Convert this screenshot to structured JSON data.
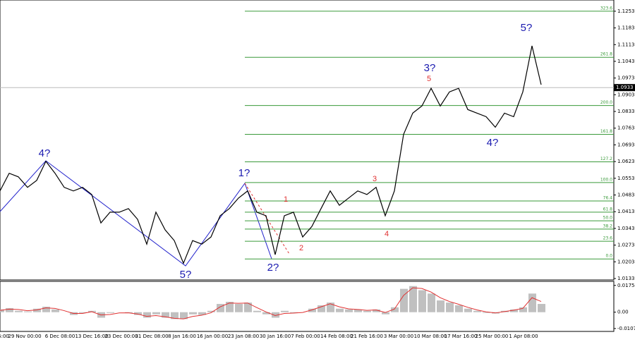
{
  "chart_data": [
    {
      "type": "price-line",
      "color": "#000000",
      "values": [
        1.05,
        1.0574,
        1.0559,
        1.0515,
        1.0544,
        1.0624,
        1.0574,
        1.0515,
        1.05,
        1.0515,
        1.0485,
        1.0366,
        1.0411,
        1.0411,
        1.0426,
        1.0381,
        1.0277,
        1.0411,
        1.0337,
        1.0292,
        1.0197,
        1.0292,
        1.0277,
        1.0307,
        1.0396,
        1.0426,
        1.047,
        1.05,
        1.0411,
        1.0396,
        1.0233,
        1.0396,
        1.0411,
        1.0307,
        1.0351,
        1.0426,
        1.05,
        1.044,
        1.047,
        1.05,
        1.0485,
        1.0515,
        1.0396,
        1.05,
        1.0737,
        1.0826,
        1.0856,
        1.093,
        1.0856,
        1.0915,
        1.093,
        1.0841,
        1.0826,
        1.0811,
        1.0767,
        1.0826,
        1.0811,
        1.0915,
        1.1108,
        1.0945
      ],
      "ylim": [
        1.0127,
        1.13
      ],
      "yticks": [
        1.0133,
        1.0203,
        1.0273,
        1.0343,
        1.0413,
        1.0483,
        1.0553,
        1.0623,
        1.0693,
        1.0763,
        1.0833,
        1.0903,
        1.0973,
        1.1043,
        1.1113,
        1.1183,
        1.1253
      ],
      "current_price": 1.0933,
      "fib_levels": [
        {
          "value": 1.1253,
          "label": "323.6"
        },
        {
          "value": 1.106,
          "label": "261.8"
        },
        {
          "value": 1.0858,
          "label": "200.0"
        },
        {
          "value": 1.0737,
          "label": "161.8"
        },
        {
          "value": 1.0622,
          "label": "127.2"
        },
        {
          "value": 1.0535,
          "label": "100.0"
        },
        {
          "value": 1.0458,
          "label": "76.4"
        },
        {
          "value": 1.0411,
          "label": "61.8"
        },
        {
          "value": 1.0375,
          "label": "50.0"
        },
        {
          "value": 1.034,
          "label": "38.2"
        },
        {
          "value": 1.0289,
          "label": "23.6"
        },
        {
          "value": 1.0215,
          "label": "0.0"
        }
      ],
      "annotations": [
        {
          "text": "4?",
          "color": "#1a1ab0"
        },
        {
          "text": "5?",
          "color": "#1a1ab0"
        },
        {
          "text": "1?",
          "color": "#1a1ab0"
        },
        {
          "text": "2?",
          "color": "#1a1ab0"
        },
        {
          "text": "3?",
          "color": "#1a1ab0"
        },
        {
          "text": "4?",
          "color": "#1a1ab0"
        },
        {
          "text": "5?",
          "color": "#1a1ab0"
        },
        {
          "text": "1",
          "color": "#e03030"
        },
        {
          "text": "2",
          "color": "#e03030"
        },
        {
          "text": "3",
          "color": "#e03030"
        },
        {
          "text": "4",
          "color": "#e03030"
        },
        {
          "text": "5",
          "color": "#e03030"
        }
      ],
      "x_labels": [
        "6:00",
        "29 Nov 00:00",
        "6 Dec 08:00",
        "13 Dec 16:00",
        "23 Dec 00:00",
        "31 Dec 08:00",
        "8 Jan 16:00",
        "16 Jan 00:00",
        "23 Jan 08:00",
        "30 Jan 16:00",
        "7 Feb 00:00",
        "14 Feb 08:00",
        "21 Feb 16:00",
        "3 Mar 00:00",
        "10 Mar 08:00",
        "17 Mar 16:00",
        "25 Mar 00:00",
        "1 Apr 08:00"
      ]
    },
    {
      "type": "macd",
      "color": "#c0c0c0",
      "signal_color": "#e03030",
      "values": [
        0.0018,
        0.0027,
        0.0009,
        0.0005,
        0.0023,
        0.0036,
        0.0018,
        0,
        -0.0018,
        -0.0005,
        0.0009,
        -0.0036,
        -0.0005,
        0,
        -0.0005,
        -0.0018,
        -0.0036,
        -0.0014,
        -0.0036,
        -0.0045,
        -0.0045,
        -0.0014,
        -0.0018,
        0.0009,
        0.0054,
        0.0068,
        0.0054,
        0.0063,
        0.0009,
        -0.0014,
        -0.0036,
        0.0009,
        -0.0005,
        0,
        0.0023,
        0.0045,
        0.0063,
        0.0023,
        0.0018,
        0.0018,
        0.0009,
        0.0018,
        -0.0014,
        0.0032,
        0.0153,
        0.0171,
        0.0144,
        0.0122,
        0.0077,
        0.0063,
        0.0045,
        0.0023,
        0.0009,
        -0.0005,
        -0.0009,
        0.0009,
        0.0018,
        0.0032,
        0.0122,
        0.0054
      ],
      "signal": [
        0.0012,
        0.002,
        0.0018,
        0.001,
        0.0015,
        0.0028,
        0.0025,
        0.001,
        -0.0008,
        -0.0008,
        0.0003,
        -0.0018,
        -0.0015,
        -0.0005,
        -0.0004,
        -0.0012,
        -0.0027,
        -0.0022,
        -0.003,
        -0.004,
        -0.0044,
        -0.0028,
        -0.002,
        -0.0004,
        0.0035,
        0.006,
        0.0058,
        0.006,
        0.003,
        0.0002,
        -0.0022,
        -0.0008,
        -0.0006,
        -0.0002,
        0.0015,
        0.0035,
        0.0055,
        0.0035,
        0.0022,
        0.0018,
        0.0012,
        0.0015,
        -0.0002,
        0.002,
        0.011,
        0.016,
        0.0155,
        0.0132,
        0.0095,
        0.007,
        0.0052,
        0.0032,
        0.0015,
        0.0002,
        -0.0005,
        0.0004,
        0.0013,
        0.0025,
        0.0095,
        0.007
      ],
      "ylim": [
        -0.0126,
        0.0202
      ],
      "yticks": [
        0.01754,
        {
          "value": 0,
          "label": "0.00"
        },
        -0.0107
      ]
    }
  ]
}
